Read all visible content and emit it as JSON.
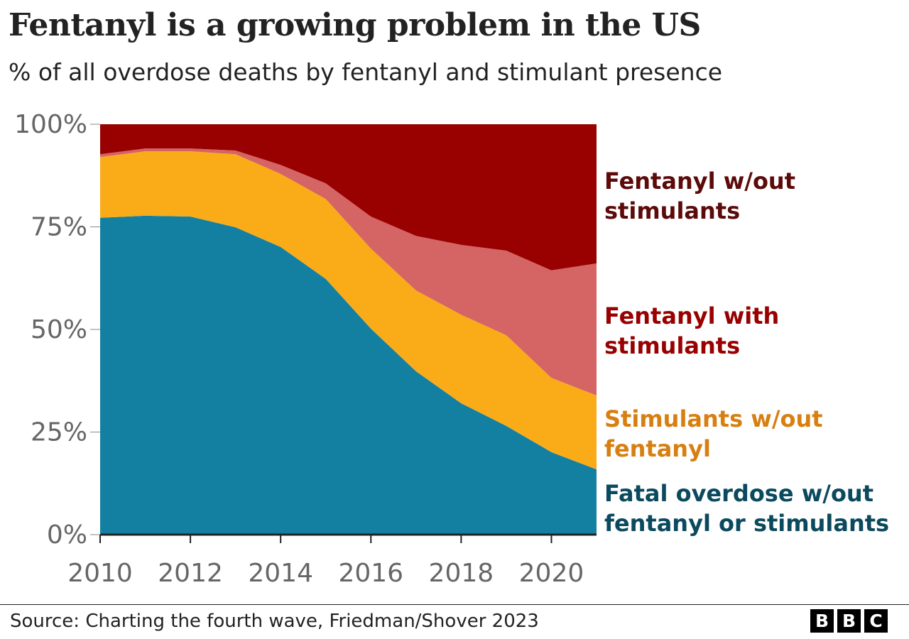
{
  "title": "Fentanyl is a growing problem in the US",
  "subtitle": "% of all overdose deaths by fentanyl and stimulant presence",
  "source": "Source: Charting the fourth wave, Friedman/Shover 2023",
  "logo": "BBC",
  "chart_data": {
    "type": "area",
    "stacked": true,
    "x": [
      2010,
      2011,
      2012,
      2013,
      2014,
      2015,
      2016,
      2017,
      2018,
      2019,
      2020,
      2021
    ],
    "xticks": [
      "2010",
      "2012",
      "2014",
      "2016",
      "2018",
      "2020"
    ],
    "yticks": [
      "0%",
      "25%",
      "50%",
      "75%",
      "100%"
    ],
    "ylim": [
      0,
      100
    ],
    "xlim": [
      2010,
      2021
    ],
    "grid": false,
    "legend_placement": "right, inline labels",
    "series": [
      {
        "name": "Fatal overdose w/out fentanyl or stimulants",
        "color": "#1380A1",
        "label_color": "#0B4A5E",
        "values": [
          77.2,
          77.7,
          77.5,
          74.9,
          70.1,
          62.3,
          50.2,
          39.8,
          32.0,
          26.5,
          20.1,
          15.9
        ]
      },
      {
        "name": "Stimulants w/out fentanyl",
        "color": "#FAAB18",
        "label_color": "#D87F12",
        "values": [
          14.8,
          15.7,
          15.9,
          17.8,
          17.8,
          19.5,
          19.5,
          19.7,
          21.6,
          22.1,
          18.1,
          18.0
        ]
      },
      {
        "name": "Fentanyl with stimulants",
        "color": "#D56464",
        "label_color": "#990000",
        "values": [
          0.7,
          0.7,
          0.7,
          0.9,
          2.2,
          3.8,
          7.8,
          13.3,
          17.0,
          20.6,
          26.2,
          32.2
        ]
      },
      {
        "name": "Fentanyl w/out stimulants",
        "color": "#990000",
        "label_color": "#5C0A0A",
        "values": [
          7.3,
          5.9,
          5.9,
          6.4,
          9.9,
          14.4,
          22.5,
          27.2,
          29.4,
          30.8,
          35.6,
          33.9
        ]
      }
    ],
    "labels": [
      [
        "Fatal overdose w/out",
        "fentanyl or stimulants"
      ],
      [
        "Stimulants w/out",
        "fentanyl"
      ],
      [
        "Fentanyl with",
        "stimulants"
      ],
      [
        "Fentanyl w/out",
        "stimulants"
      ]
    ]
  }
}
